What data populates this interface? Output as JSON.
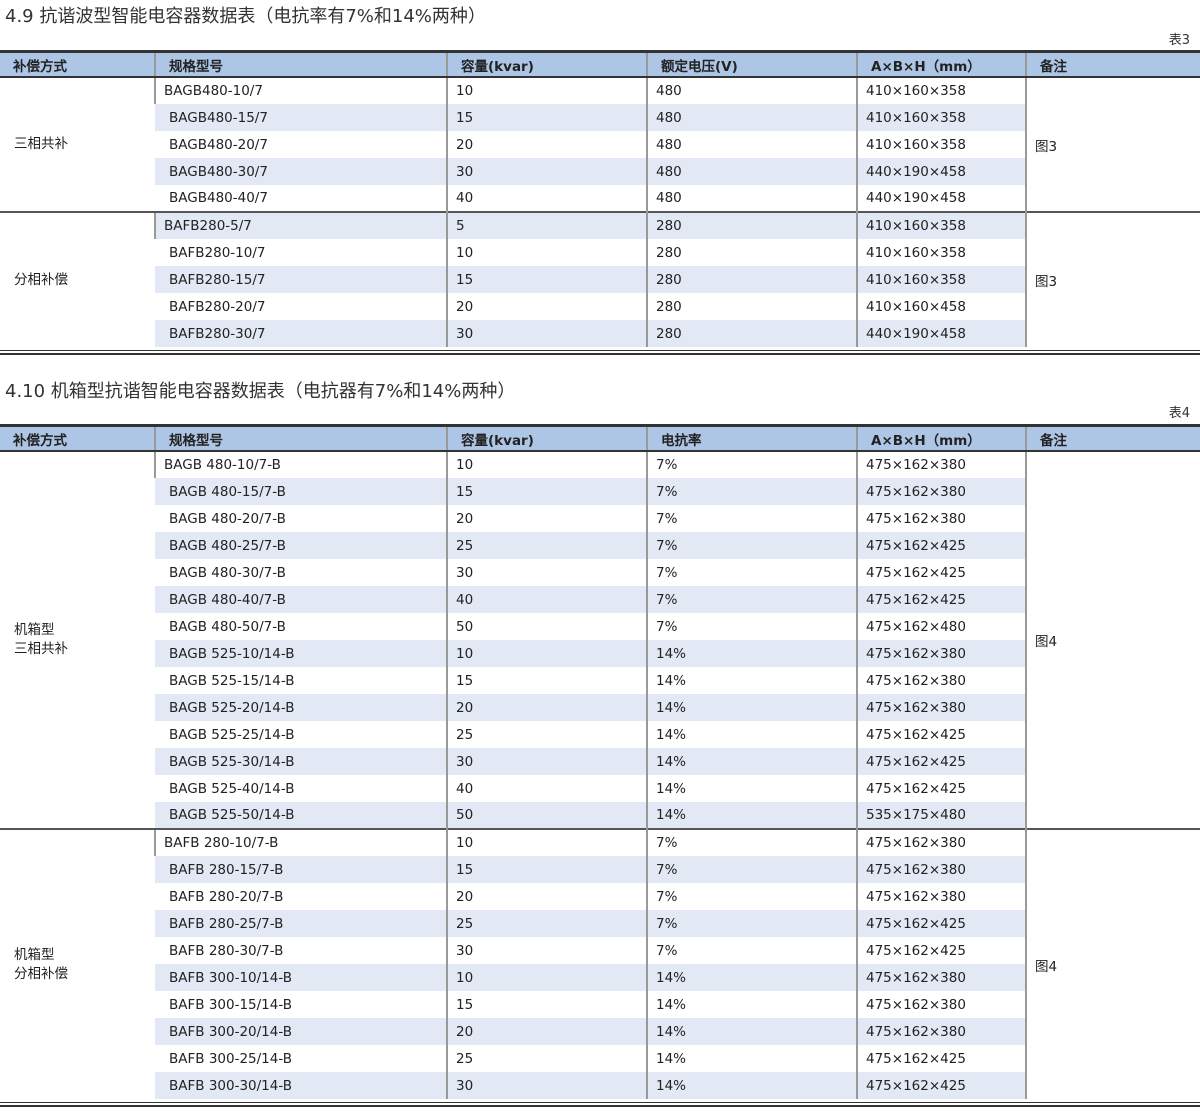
{
  "tables": [
    {
      "title": "4.9 抗谐波型智能电容器数据表（电抗率有7%和14%两种）",
      "table_no": "表3",
      "headers": [
        "补偿方式",
        "规格型号",
        "容量(kvar)",
        "额定电压(V)",
        "A×B×H（mm）",
        "备注"
      ],
      "groups": [
        {
          "label": "三相共补",
          "note": "图3",
          "rows": [
            [
              "BAGB480-10/7",
              "10",
              "480",
              "410×160×358"
            ],
            [
              "BAGB480-15/7",
              "15",
              "480",
              "410×160×358"
            ],
            [
              "BAGB480-20/7",
              "20",
              "480",
              "410×160×358"
            ],
            [
              "BAGB480-30/7",
              "30",
              "480",
              "440×190×458"
            ],
            [
              "BAGB480-40/7",
              "40",
              "480",
              "440×190×458"
            ]
          ]
        },
        {
          "label": "分相补偿",
          "note": "图3",
          "rows": [
            [
              "BAFB280-5/7",
              "5",
              "280",
              "410×160×358"
            ],
            [
              "BAFB280-10/7",
              "10",
              "280",
              "410×160×358"
            ],
            [
              "BAFB280-15/7",
              "15",
              "280",
              "410×160×358"
            ],
            [
              "BAFB280-20/7",
              "20",
              "280",
              "410×160×458"
            ],
            [
              "BAFB280-30/7",
              "30",
              "280",
              "440×190×458"
            ]
          ]
        }
      ]
    },
    {
      "title": "4.10 机箱型抗谐智能电容器数据表（电抗器有7%和14%两种）",
      "table_no": "表4",
      "headers": [
        "补偿方式",
        "规格型号",
        "容量(kvar)",
        "电抗率",
        "A×B×H（mm）",
        "备注"
      ],
      "groups": [
        {
          "label": "机箱型\n三相共补",
          "note": "图4",
          "rows": [
            [
              "BAGB 480-10/7-B",
              "10",
              "7%",
              "475×162×380"
            ],
            [
              "BAGB 480-15/7-B",
              "15",
              "7%",
              "475×162×380"
            ],
            [
              "BAGB 480-20/7-B",
              "20",
              "7%",
              "475×162×380"
            ],
            [
              "BAGB 480-25/7-B",
              "25",
              "7%",
              "475×162×425"
            ],
            [
              "BAGB 480-30/7-B",
              "30",
              "7%",
              "475×162×425"
            ],
            [
              "BAGB 480-40/7-B",
              "40",
              "7%",
              "475×162×425"
            ],
            [
              "BAGB 480-50/7-B",
              "50",
              "7%",
              "475×162×480"
            ],
            [
              "BAGB 525-10/14-B",
              "10",
              "14%",
              "475×162×380"
            ],
            [
              "BAGB 525-15/14-B",
              "15",
              "14%",
              "475×162×380"
            ],
            [
              "BAGB 525-20/14-B",
              "20",
              "14%",
              "475×162×380"
            ],
            [
              "BAGB 525-25/14-B",
              "25",
              "14%",
              "475×162×425"
            ],
            [
              "BAGB 525-30/14-B",
              "30",
              "14%",
              "475×162×425"
            ],
            [
              "BAGB 525-40/14-B",
              "40",
              "14%",
              "475×162×425"
            ],
            [
              "BAGB 525-50/14-B",
              "50",
              "14%",
              "535×175×480"
            ]
          ]
        },
        {
          "label": "机箱型\n分相补偿",
          "note": "图4",
          "rows": [
            [
              "BAFB 280-10/7-B",
              "10",
              "7%",
              "475×162×380"
            ],
            [
              "BAFB 280-15/7-B",
              "15",
              "7%",
              "475×162×380"
            ],
            [
              "BAFB 280-20/7-B",
              "20",
              "7%",
              "475×162×380"
            ],
            [
              "BAFB 280-25/7-B",
              "25",
              "7%",
              "475×162×425"
            ],
            [
              "BAFB 280-30/7-B",
              "30",
              "7%",
              "475×162×425"
            ],
            [
              "BAFB 300-10/14-B",
              "10",
              "14%",
              "475×162×380"
            ],
            [
              "BAFB 300-15/14-B",
              "15",
              "14%",
              "475×162×380"
            ],
            [
              "BAFB 300-20/14-B",
              "20",
              "14%",
              "475×162×380"
            ],
            [
              "BAFB 300-25/14-B",
              "25",
              "14%",
              "475×162×425"
            ],
            [
              "BAFB 300-30/14-B",
              "30",
              "14%",
              "475×162×425"
            ]
          ]
        }
      ]
    }
  ]
}
